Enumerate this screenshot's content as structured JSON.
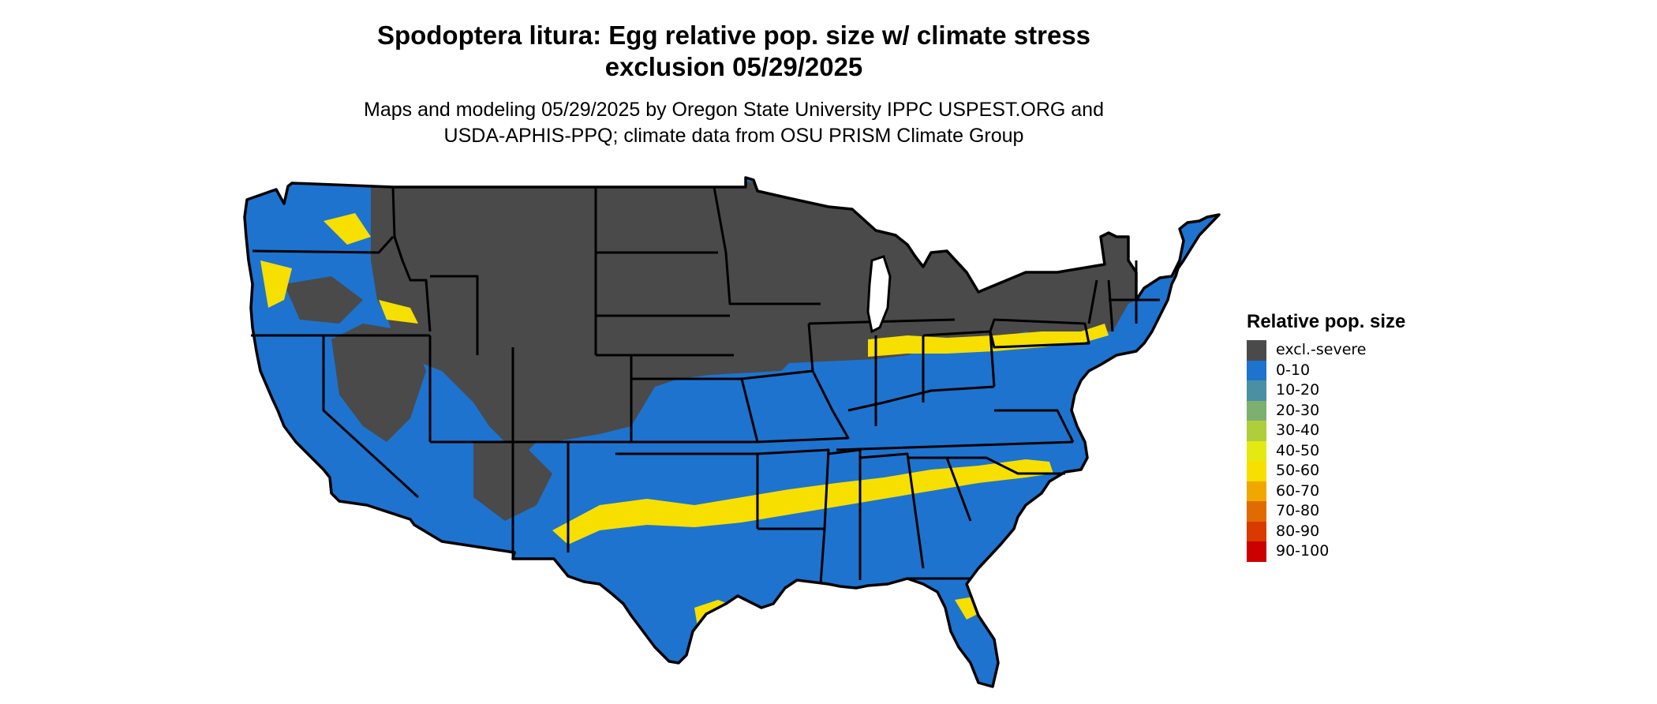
{
  "title": {
    "line1": "Spodoptera litura: Egg relative pop. size w/ climate stress",
    "line2": "exclusion 05/29/2025"
  },
  "subtitle": {
    "line1": "Maps and modeling 05/29/2025 by Oregon State University IPPC USPEST.ORG and",
    "line2": "USDA-APHIS-PPQ; climate data from OSU PRISM Climate Group"
  },
  "legend": {
    "title": "Relative pop. size",
    "items": [
      {
        "label": "excl.-severe",
        "color": "#4a4a4a"
      },
      {
        "label": "0-10",
        "color": "#1e73cf"
      },
      {
        "label": "10-20",
        "color": "#4a8fa3"
      },
      {
        "label": "20-30",
        "color": "#7daf6e"
      },
      {
        "label": "30-40",
        "color": "#b0cd3c"
      },
      {
        "label": "40-50",
        "color": "#e3ea12"
      },
      {
        "label": "50-60",
        "color": "#f7df00"
      },
      {
        "label": "60-70",
        "color": "#f0a800"
      },
      {
        "label": "70-80",
        "color": "#e06b00"
      },
      {
        "label": "80-90",
        "color": "#d83a00"
      },
      {
        "label": "90-100",
        "color": "#cc0000"
      }
    ]
  },
  "map": {
    "region": "Contiguous United States",
    "boundary_color": "#000000",
    "excluded_color": "#4a4a4a",
    "low_color": "#1e73cf",
    "high_color": "#f7df00"
  }
}
